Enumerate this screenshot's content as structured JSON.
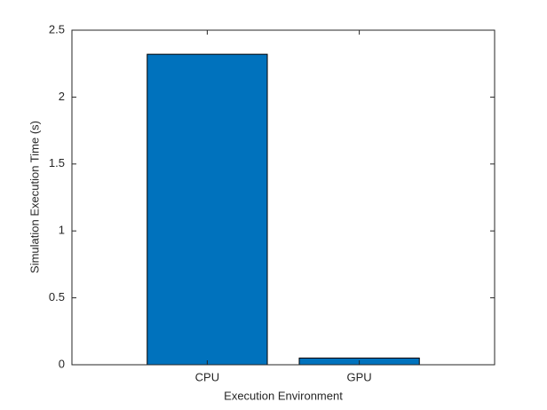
{
  "chart_data": {
    "type": "bar",
    "xlabel": "Execution Environment",
    "ylabel": "Simulation Execution Time (s)",
    "categories": [
      "CPU",
      "GPU"
    ],
    "values": [
      2.32,
      0.05
    ],
    "color": "#0072bd",
    "ylim": [
      0,
      2.5
    ],
    "yticks": [
      0,
      0.5,
      1,
      1.5,
      2,
      2.5
    ],
    "grid": false
  }
}
